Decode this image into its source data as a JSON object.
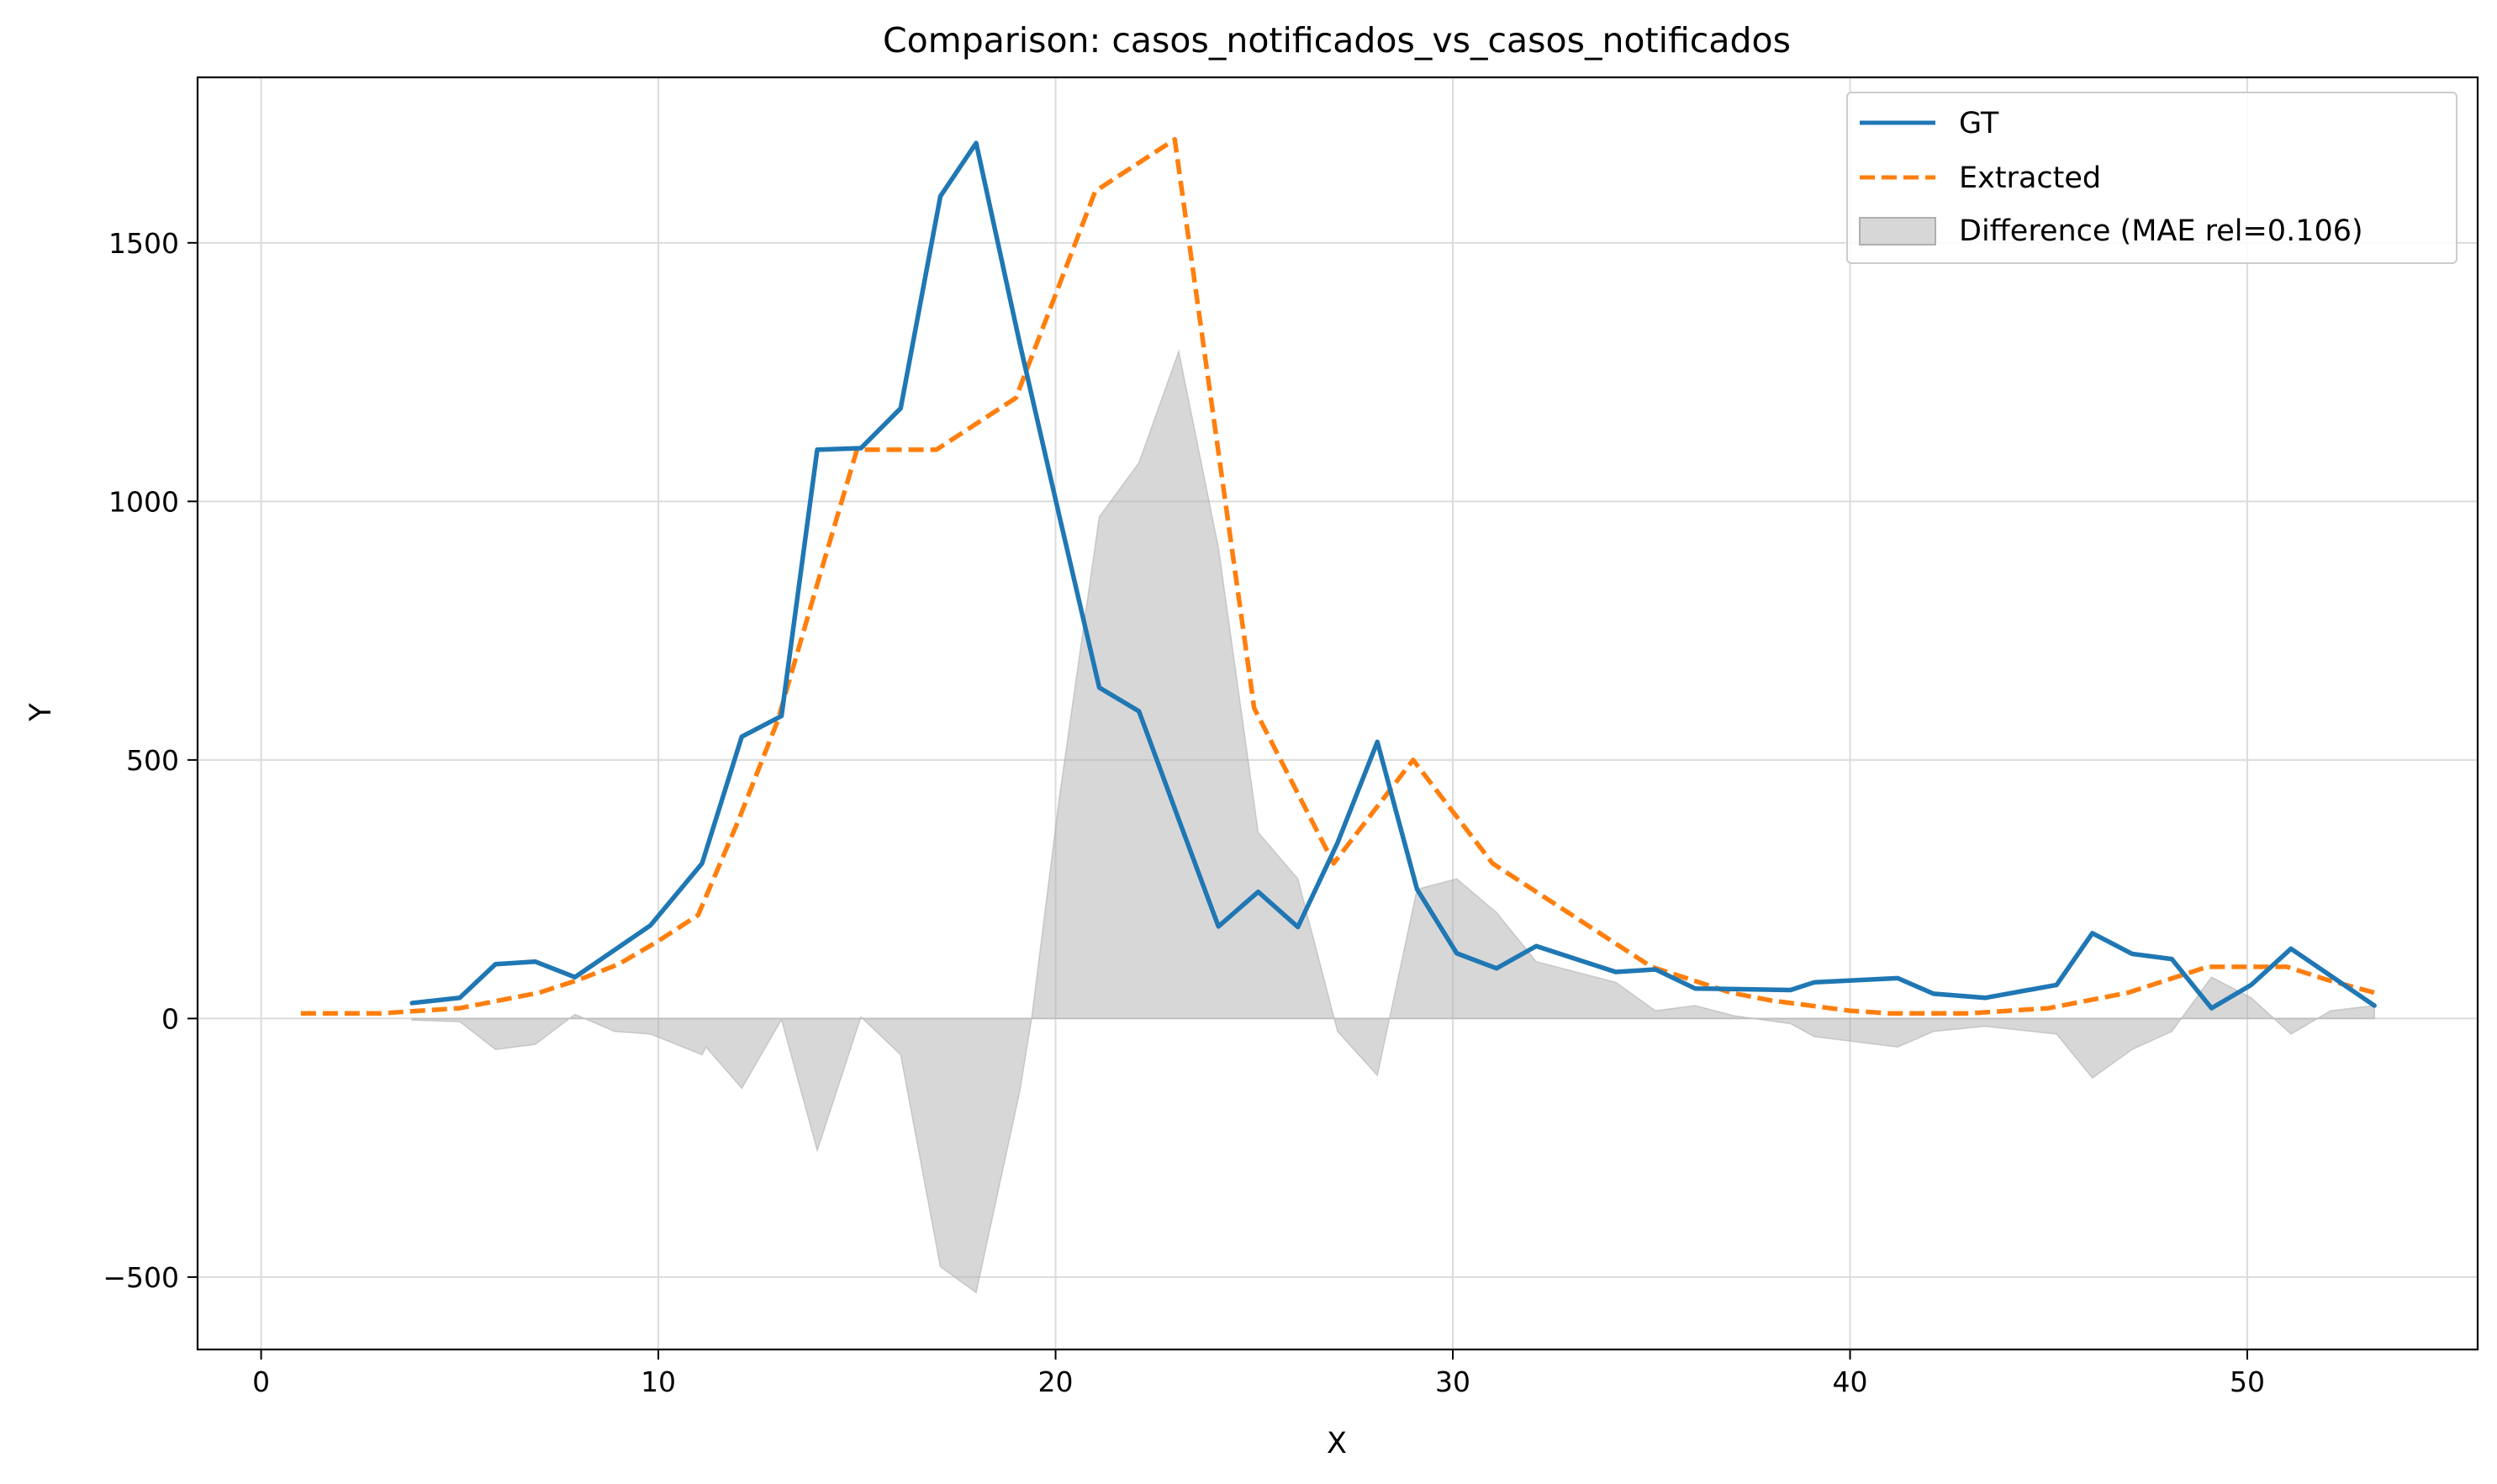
{
  "chart_data": {
    "type": "line",
    "title": "Comparison: casos_notificados_vs_casos_notificados",
    "xlabel": "X",
    "ylabel": "Y",
    "xlim": [
      -1.6,
      55.8
    ],
    "ylim": [
      -640,
      1820
    ],
    "xticks": [
      0,
      10,
      20,
      30,
      40,
      50
    ],
    "yticks": [
      -500,
      0,
      500,
      1000,
      1500
    ],
    "ytick_labels": [
      "−500",
      "0",
      "500",
      "1000",
      "1500"
    ],
    "grid": true,
    "legend_position": "top-right",
    "colors": {
      "gt": "#1f77b4",
      "extracted": "#ff7f0e",
      "difference": "#b0b0b0",
      "grid": "#dcdcdc",
      "axis": "#000000"
    },
    "series": [
      {
        "name": "GT",
        "style": "solid",
        "x": [
          3.8,
          5,
          5.9,
          6.9,
          7.9,
          9.8,
          11.1,
          12.1,
          13.1,
          14,
          15.1,
          16.1,
          17.1,
          18,
          19.1,
          20.1,
          21.1,
          22.1,
          23.1,
          24.1,
          25.1,
          26.1,
          27.1,
          28.1,
          29.1,
          30.1,
          31.1,
          32.1,
          34.1,
          35.1,
          36.1,
          37.1,
          38.5,
          39.1,
          41.2,
          42.1,
          43.4,
          45.2,
          46.1,
          47.1,
          48.1,
          49.1,
          50.1,
          51.1,
          53.2
        ],
        "values": [
          30,
          40,
          105,
          110,
          80,
          180,
          300,
          545,
          585,
          1100,
          1103,
          1180,
          1590,
          1693,
          1305,
          970,
          640,
          594,
          385,
          178,
          245,
          177,
          340,
          535,
          250,
          126,
          97,
          140,
          90,
          95,
          58,
          57,
          55,
          70,
          78,
          48,
          40,
          65,
          165,
          125,
          115,
          20,
          65,
          135,
          25
        ]
      },
      {
        "name": "Extracted",
        "style": "dashed",
        "x": [
          1,
          2,
          3,
          4,
          5,
          6,
          7,
          8,
          9,
          10,
          11,
          12,
          13,
          14,
          15,
          16,
          17,
          18,
          19,
          20,
          21,
          22,
          23,
          24,
          25,
          26,
          27,
          28,
          29,
          30,
          31,
          32,
          33,
          34,
          35,
          36,
          37,
          38,
          39,
          40,
          41,
          42,
          43,
          44,
          45,
          46,
          47,
          48,
          49,
          50,
          51,
          52,
          53.2
        ],
        "values": [
          10,
          10,
          10,
          15,
          20,
          35,
          50,
          75,
          105,
          150,
          200,
          380,
          575,
          840,
          1100,
          1100,
          1100,
          1150,
          1200,
          1400,
          1600,
          1650,
          1700,
          1150,
          600,
          450,
          300,
          400,
          500,
          400,
          300,
          250,
          200,
          150,
          100,
          75,
          50,
          35,
          25,
          15,
          10,
          10,
          10,
          15,
          20,
          35,
          50,
          75,
          100,
          100,
          100,
          75,
          50
        ]
      },
      {
        "name": "Difference (MAE rel=0.106)",
        "style": "fill",
        "x": [
          3.8,
          5,
          5.9,
          6.9,
          7.9,
          8.9,
          9.8,
          11.1,
          11.2,
          12.1,
          13.1,
          14,
          15.1,
          16.1,
          17.1,
          18,
          19.1,
          19.4,
          20.1,
          21.1,
          22.1,
          23.1,
          24.1,
          25.1,
          26.1,
          27.1,
          28.1,
          29.1,
          30.1,
          31.1,
          32.1,
          34.1,
          35.1,
          36.1,
          37.1,
          38.5,
          39.1,
          41.2,
          42.1,
          43.4,
          45.2,
          46.1,
          47.1,
          48.1,
          49.1,
          50.1,
          51.1,
          52.1,
          53.2
        ],
        "values": [
          -3,
          -6,
          -60,
          -50,
          8,
          -25,
          -30,
          -70,
          -55,
          -135,
          -2,
          -255,
          3,
          -70,
          -480,
          -530,
          -140,
          2,
          430,
          970,
          1075,
          1290,
          910,
          360,
          270,
          -25,
          -110,
          250,
          270,
          205,
          110,
          70,
          15,
          25,
          5,
          -10,
          -35,
          -55,
          -25,
          -15,
          -30,
          -115,
          -60,
          -25,
          80,
          40,
          -30,
          15,
          25
        ]
      }
    ]
  }
}
